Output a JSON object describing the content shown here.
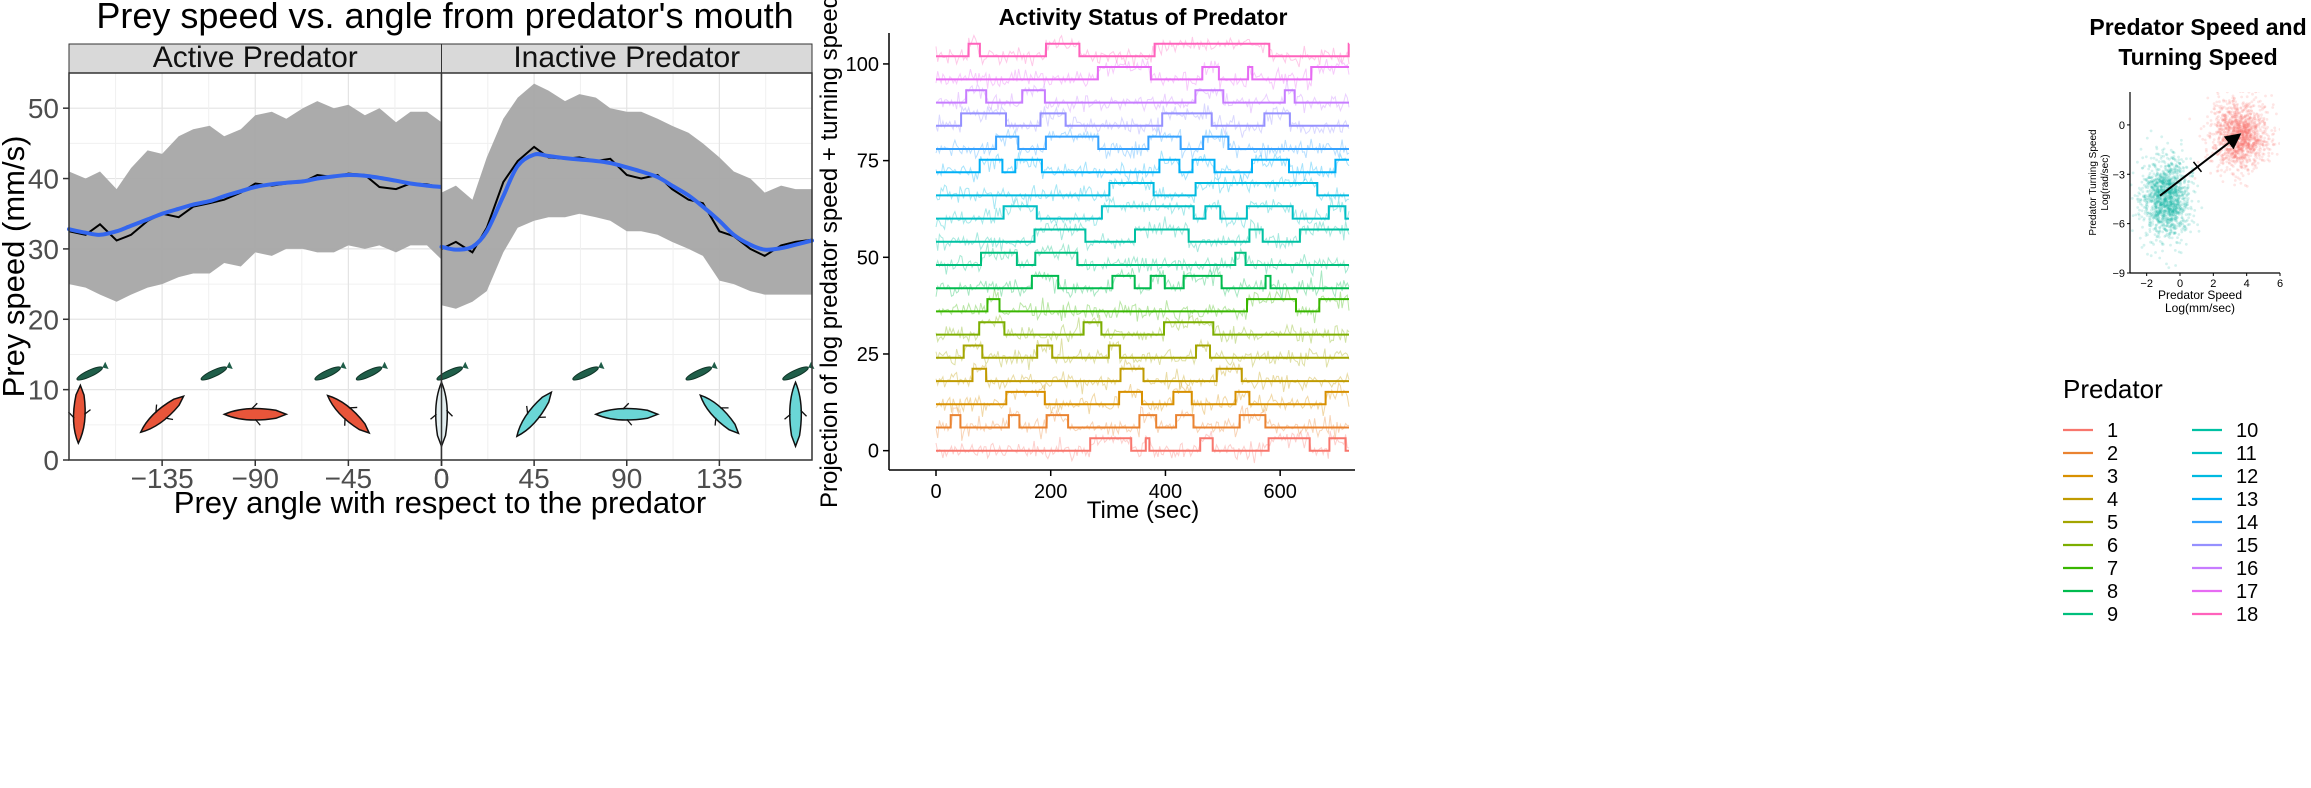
{
  "chart_data": [
    {
      "type": "line",
      "title": "Prey speed vs. angle from predator's mouth",
      "xlabel": "Prey angle with respect to the predator",
      "ylabel": "Prey speed (mm/s)",
      "ylim": [
        0,
        55
      ],
      "yticks": [
        0,
        10,
        20,
        30,
        40,
        50
      ],
      "grid": true,
      "panels": [
        {
          "name": "Active Predator",
          "xlim": [
            -180,
            0
          ],
          "xticks": [
            -135,
            -90,
            -45,
            0
          ],
          "x": [
            -180,
            -172,
            -165,
            -157,
            -150,
            -142,
            -135,
            -127,
            -120,
            -112,
            -105,
            -97,
            -90,
            -82,
            -75,
            -67,
            -60,
            -52,
            -45,
            -37,
            -30,
            -22,
            -15,
            -7,
            0
          ],
          "mean": [
            32.5,
            32.0,
            33.5,
            31.2,
            32.0,
            34.0,
            35.0,
            34.5,
            36.0,
            36.5,
            37.0,
            38.0,
            39.3,
            39.0,
            39.3,
            39.5,
            40.5,
            40.2,
            40.7,
            40.5,
            38.8,
            38.5,
            39.3,
            39.2,
            38.7
          ],
          "smooth": [
            32.8,
            32.3,
            32.0,
            32.5,
            33.3,
            34.2,
            35.0,
            35.7,
            36.3,
            36.8,
            37.5,
            38.2,
            38.8,
            39.2,
            39.4,
            39.6,
            40.0,
            40.3,
            40.5,
            40.4,
            40.1,
            39.7,
            39.3,
            39.0,
            38.8
          ],
          "upper": [
            41.0,
            40.0,
            41.0,
            38.5,
            41.5,
            44.0,
            43.5,
            46.0,
            47.0,
            47.5,
            46.0,
            47.0,
            49.0,
            49.5,
            48.5,
            50.0,
            51.0,
            50.0,
            50.5,
            49.0,
            50.0,
            48.0,
            49.5,
            49.5,
            48.0
          ],
          "lower": [
            25.0,
            24.5,
            23.5,
            22.5,
            23.5,
            24.5,
            25.0,
            26.0,
            26.5,
            26.5,
            28.0,
            27.5,
            29.5,
            29.0,
            30.0,
            30.0,
            29.5,
            29.5,
            30.5,
            30.0,
            30.5,
            29.5,
            30.5,
            30.5,
            28.5
          ],
          "fish_colour": "#e8553a"
        },
        {
          "name": "Inactive Predator",
          "xlim": [
            0,
            180
          ],
          "xticks": [
            0,
            45,
            90,
            135
          ],
          "x": [
            0,
            7,
            15,
            22,
            30,
            37,
            45,
            52,
            60,
            67,
            75,
            82,
            90,
            97,
            105,
            112,
            120,
            127,
            135,
            142,
            150,
            157,
            165,
            172,
            180
          ],
          "mean": [
            30.0,
            31.0,
            29.5,
            33.0,
            39.5,
            42.5,
            44.5,
            43.0,
            42.8,
            43.0,
            42.5,
            42.8,
            40.5,
            40.0,
            40.5,
            38.5,
            37.0,
            36.5,
            32.5,
            31.8,
            30.0,
            29.0,
            30.5,
            31.0,
            31.3
          ],
          "smooth": [
            30.3,
            29.9,
            30.3,
            32.5,
            37.5,
            41.8,
            43.4,
            43.2,
            42.9,
            42.7,
            42.5,
            42.2,
            41.6,
            41.0,
            40.2,
            39.0,
            37.6,
            36.0,
            34.0,
            32.0,
            30.6,
            29.9,
            30.1,
            30.6,
            31.2
          ],
          "upper": [
            38.0,
            39.0,
            37.0,
            43.0,
            48.5,
            51.5,
            53.5,
            52.5,
            51.0,
            52.0,
            51.5,
            50.0,
            49.5,
            49.5,
            48.5,
            47.5,
            46.5,
            45.0,
            43.0,
            41.0,
            40.0,
            38.0,
            39.0,
            38.5,
            38.5
          ],
          "lower": [
            22.0,
            21.5,
            22.5,
            24.0,
            29.5,
            33.0,
            34.0,
            34.5,
            34.5,
            35.0,
            34.5,
            34.0,
            32.5,
            32.5,
            32.0,
            31.0,
            30.0,
            29.0,
            25.5,
            25.0,
            24.0,
            23.5,
            23.5,
            23.5,
            23.5
          ],
          "fish_colour": "#6ad6d6"
        }
      ]
    },
    {
      "type": "line",
      "title": "Activity Status of Predator",
      "xlabel": "Time (sec)",
      "ylabel": "Projection of log predator speed + turning speed",
      "xlim": [
        0,
        720
      ],
      "xticks": [
        0,
        200,
        400,
        600
      ],
      "ylim": [
        -5,
        108
      ],
      "yticks": [
        0,
        25,
        50,
        75,
        100
      ],
      "legend": {
        "title": "Predator",
        "placement": "right",
        "entries": [
          "1",
          "2",
          "3",
          "4",
          "5",
          "6",
          "7",
          "8",
          "9",
          "10",
          "11",
          "12",
          "13",
          "14",
          "15",
          "16",
          "17",
          "18"
        ],
        "colours": [
          "#f8766d",
          "#ea8331",
          "#d89000",
          "#c09b00",
          "#a3a500",
          "#7cae00",
          "#39b600",
          "#00bb4e",
          "#00bf7d",
          "#00c1a3",
          "#00bfc4",
          "#00bae0",
          "#00b0f6",
          "#35a2ff",
          "#9590ff",
          "#c77cff",
          "#e76bf3",
          "#ff62bc"
        ]
      }
    },
    {
      "type": "scatter",
      "title": "Predator Speed and\nTurning Speed",
      "xlabel": "Predator Speed\nLog(mm/sec)",
      "ylabel": "Predator Turning Speed\nLog(rad/sec)",
      "xlim": [
        -3,
        6
      ],
      "xticks": [
        -2,
        0,
        2,
        4,
        6
      ],
      "ylim": [
        -9,
        2
      ],
      "yticks": [
        -9,
        -6,
        -3,
        0
      ],
      "clusters": [
        {
          "colour": "#17b7a5",
          "center": [
            -0.8,
            -4.5
          ],
          "spread": [
            0.9,
            1.5
          ]
        },
        {
          "colour": "#f8766d",
          "center": [
            3.6,
            -0.6
          ],
          "spread": [
            1.0,
            1.3
          ]
        }
      ],
      "arrow": {
        "from": [
          -1.2,
          -4.3
        ],
        "to": [
          3.3,
          -0.8
        ]
      }
    }
  ]
}
